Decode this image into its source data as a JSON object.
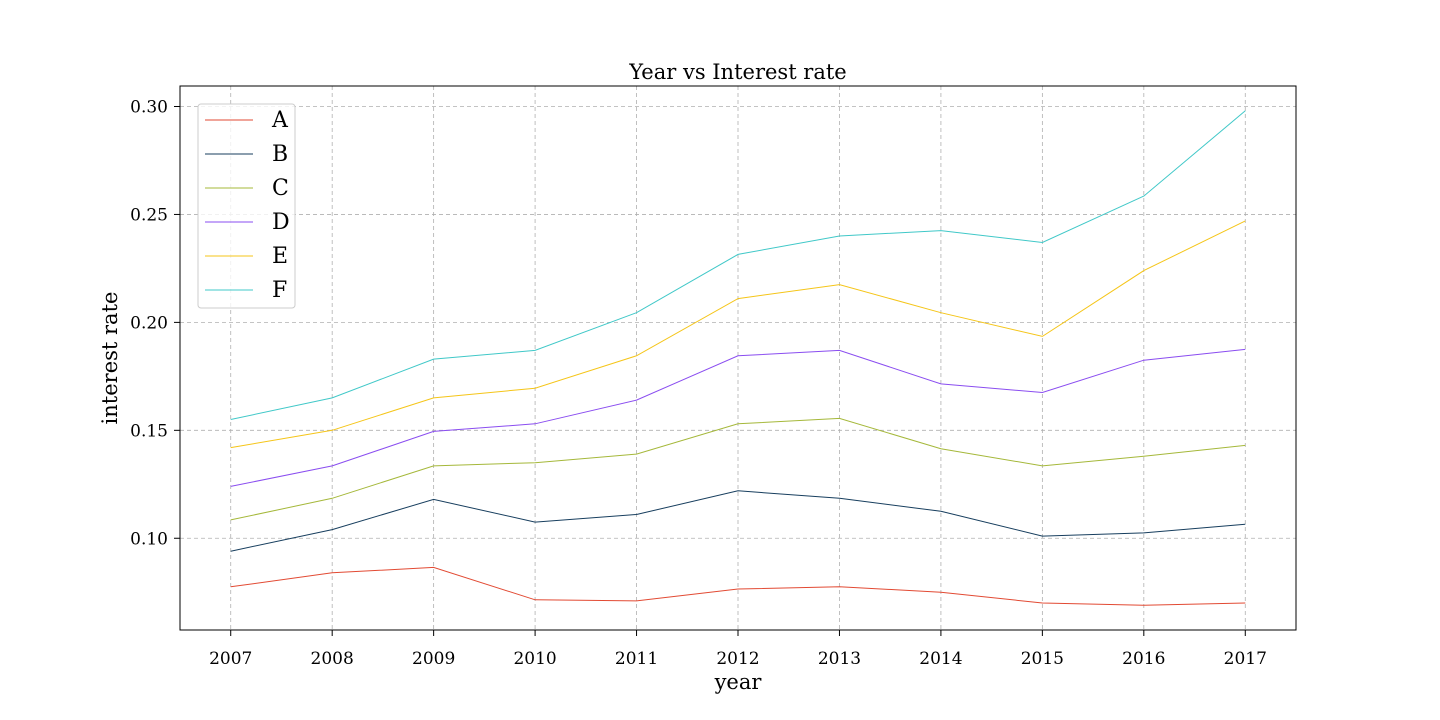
{
  "chart_data": {
    "type": "line",
    "title": "Year vs Interest rate",
    "xlabel": "year",
    "ylabel": "interest rate",
    "x": [
      2007,
      2008,
      2009,
      2010,
      2011,
      2012,
      2013,
      2014,
      2015,
      2016,
      2017
    ],
    "xticks": [
      "2007",
      "2008",
      "2009",
      "2010",
      "2011",
      "2012",
      "2013",
      "2014",
      "2015",
      "2016",
      "2017"
    ],
    "yticks": [
      "0.10",
      "0.15",
      "0.20",
      "0.25",
      "0.30"
    ],
    "ytick_values": [
      0.1,
      0.15,
      0.2,
      0.25,
      0.3
    ],
    "xlim": [
      2006.5,
      2017.5
    ],
    "ylim": [
      0.0575,
      0.3095
    ],
    "grid": true,
    "legend_position": "top-left",
    "series": [
      {
        "name": "A",
        "color": "#e24a33",
        "values": [
          0.0775,
          0.084,
          0.0865,
          0.0715,
          0.071,
          0.0765,
          0.0775,
          0.075,
          0.07,
          0.069,
          0.07
        ]
      },
      {
        "name": "B",
        "color": "#173e5e",
        "values": [
          0.094,
          0.104,
          0.118,
          0.1075,
          0.111,
          0.122,
          0.1185,
          0.1125,
          0.101,
          0.1025,
          0.1065
        ]
      },
      {
        "name": "C",
        "color": "#a5b83a",
        "values": [
          0.1085,
          0.1185,
          0.1335,
          0.135,
          0.139,
          0.153,
          0.1555,
          0.1415,
          0.1335,
          0.138,
          0.143
        ]
      },
      {
        "name": "D",
        "color": "#8a4df0",
        "values": [
          0.124,
          0.1335,
          0.1495,
          0.153,
          0.164,
          0.1845,
          0.187,
          0.1715,
          0.1675,
          0.1825,
          0.1875
        ]
      },
      {
        "name": "E",
        "color": "#f5c518",
        "values": [
          0.142,
          0.15,
          0.165,
          0.1695,
          0.1845,
          0.211,
          0.2175,
          0.2045,
          0.1935,
          0.224,
          0.247
        ]
      },
      {
        "name": "F",
        "color": "#40c8c8",
        "values": [
          0.155,
          0.165,
          0.183,
          0.187,
          0.2045,
          0.2315,
          0.24,
          0.2425,
          0.237,
          0.2585,
          0.298
        ]
      }
    ]
  }
}
